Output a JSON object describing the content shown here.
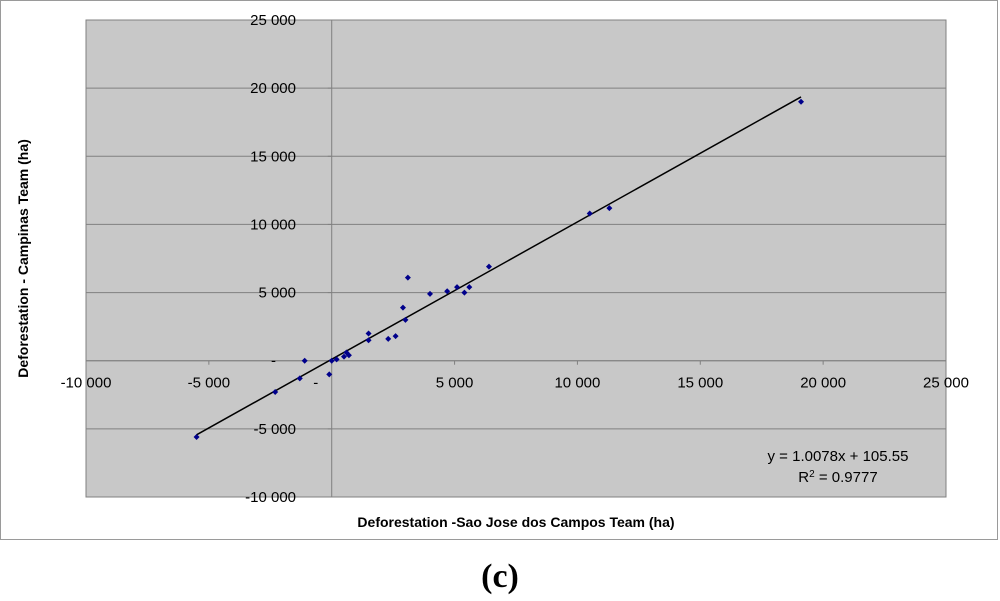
{
  "chart_data": {
    "type": "scatter",
    "title": "",
    "xlabel": "Deforestation -Sao Jose dos Campos Team (ha)",
    "ylabel": "Deforestation - Campinas Team (ha)",
    "xlim": [
      -10000,
      25000
    ],
    "ylim": [
      -10000,
      25000
    ],
    "x_ticks": [
      "-10 000",
      "-5 000",
      "-",
      "5 000",
      "10 000",
      "15 000",
      "20 000",
      "25 000"
    ],
    "y_ticks": [
      "-10 000",
      "-5 000",
      "-",
      "5 000",
      "10 000",
      "15 000",
      "20 000",
      "25 000"
    ],
    "grid": true,
    "legend": "none",
    "series": [
      {
        "color": "#00008b",
        "x": [
          -5500,
          -2300,
          -1300,
          -1100,
          -100,
          0,
          200,
          500,
          600,
          700,
          1500,
          1500,
          2300,
          2600,
          2900,
          3000,
          3100,
          4000,
          4700,
          5100,
          5400,
          5600,
          6400,
          10500,
          11300,
          19100
        ],
        "y": [
          -5600,
          -2300,
          -1300,
          0,
          -1000,
          0,
          100,
          300,
          600,
          400,
          1500,
          2000,
          1600,
          1800,
          3900,
          3000,
          6100,
          4900,
          5100,
          5400,
          5000,
          5400,
          6900,
          10800,
          11200,
          19000
        ]
      }
    ],
    "trendline": {
      "slope": 1.0078,
      "intercept": 105.55,
      "x_range": [
        -5500,
        19100
      ],
      "equation": "y = 1.0078x + 105.55",
      "r2_prefix": "R",
      "r2_sup": "2",
      "r2_value": " = 0.9777"
    }
  },
  "caption": "(c)"
}
